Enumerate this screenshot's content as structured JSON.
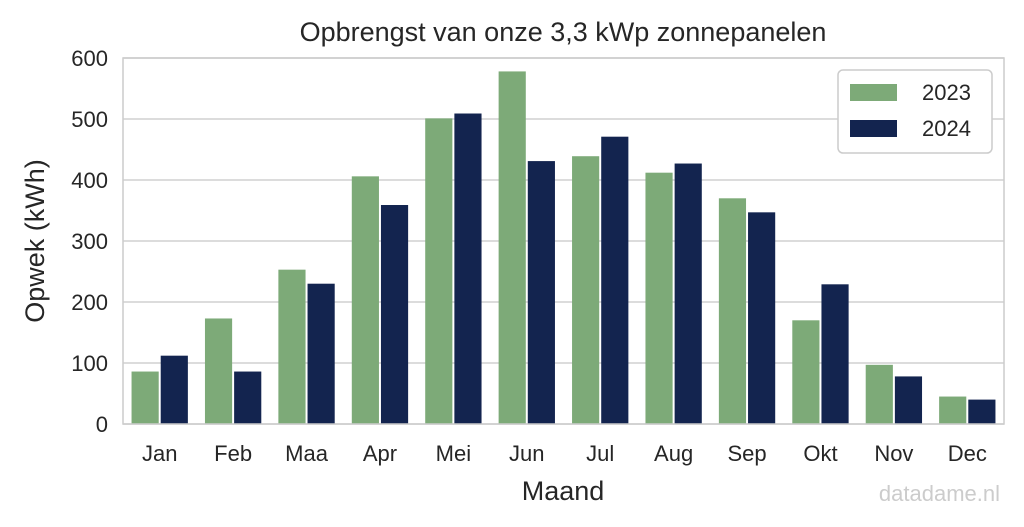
{
  "chart_data": {
    "type": "bar",
    "title": "Opbrengst van onze 3,3 kWp zonnepanelen",
    "xlabel": "Maand",
    "ylabel": "Opwek (kWh)",
    "ylim": [
      0,
      600
    ],
    "yticks": [
      0,
      100,
      200,
      300,
      400,
      500,
      600
    ],
    "grid": true,
    "legend_position": "top-right",
    "categories": [
      "Jan",
      "Feb",
      "Maa",
      "Apr",
      "Mei",
      "Jun",
      "Jul",
      "Aug",
      "Sep",
      "Okt",
      "Nov",
      "Dec"
    ],
    "series": [
      {
        "name": "2023",
        "color": "#7daa78",
        "values": [
          86,
          173,
          253,
          406,
          501,
          578,
          439,
          412,
          370,
          170,
          97,
          45
        ]
      },
      {
        "name": "2024",
        "color": "#13244f",
        "values": [
          112,
          86,
          230,
          359,
          509,
          431,
          471,
          427,
          347,
          229,
          78,
          40
        ]
      }
    ]
  },
  "watermark": "datadame.nl"
}
